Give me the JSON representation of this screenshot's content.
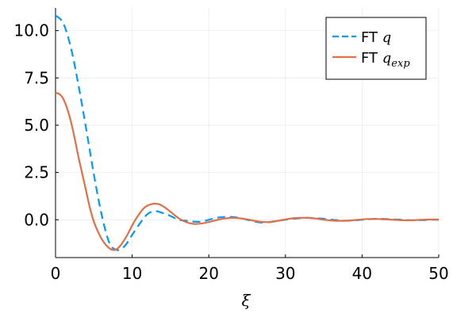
{
  "chart_data": {
    "type": "line",
    "xlabel": "ξ",
    "ylabel": "",
    "xlim": [
      0,
      50
    ],
    "ylim": [
      -2.0,
      11.2
    ],
    "x_ticks": [
      0,
      10,
      20,
      30,
      40,
      50
    ],
    "x_tick_labels": [
      "0",
      "10",
      "20",
      "30",
      "40",
      "50"
    ],
    "y_ticks": [
      0.0,
      2.5,
      5.0,
      7.5,
      10.0
    ],
    "y_tick_labels": [
      "0.0",
      "2.5",
      "5.0",
      "7.5",
      "10.0"
    ],
    "grid": true,
    "legend_position": "top-right",
    "series": [
      {
        "name": "FT q",
        "legend_prefix": "FT",
        "legend_math": "q",
        "legend_subscript": "",
        "color": "#009AFA",
        "dash": "dashed",
        "x": [
          0,
          1,
          2,
          3,
          4,
          5,
          6,
          7,
          8,
          9,
          10,
          11,
          12,
          13,
          14,
          15,
          16,
          17,
          18,
          19,
          20,
          21,
          22,
          23,
          24,
          25,
          26,
          27,
          28,
          29,
          30,
          31,
          32,
          33,
          34,
          35,
          36,
          37,
          38,
          39,
          40,
          41,
          42,
          43,
          44,
          45,
          46,
          47,
          48,
          49,
          50
        ],
        "y": [
          10.8,
          10.4,
          9.1,
          7.1,
          4.8,
          2.4,
          0.3,
          -1.2,
          -1.6,
          -1.4,
          -0.8,
          -0.2,
          0.3,
          0.45,
          0.35,
          0.2,
          0.0,
          -0.05,
          -0.1,
          -0.1,
          0.0,
          0.1,
          0.15,
          0.15,
          0.1,
          0.0,
          -0.1,
          -0.15,
          -0.12,
          -0.05,
          0.0,
          0.05,
          0.08,
          0.1,
          0.08,
          0.05,
          0.0,
          -0.03,
          -0.05,
          -0.04,
          0.0,
          0.03,
          0.05,
          0.04,
          0.02,
          0.0,
          -0.02,
          -0.03,
          -0.02,
          0.0,
          0.0
        ]
      },
      {
        "name": "FT q_exp",
        "legend_prefix": "FT",
        "legend_math": "q",
        "legend_subscript": "exp",
        "color": "#E26F46",
        "dash": "solid",
        "x": [
          0,
          0.5,
          1,
          1.5,
          2,
          2.5,
          3,
          3.5,
          4,
          4.5,
          5,
          5.5,
          6,
          6.5,
          7,
          7.5,
          8,
          8.5,
          9,
          9.5,
          10,
          10.5,
          11,
          11.5,
          12,
          12.5,
          13,
          13.5,
          14,
          14.5,
          15,
          16,
          17,
          18,
          19,
          20,
          21,
          22,
          23,
          24,
          25,
          26,
          27,
          28,
          29,
          30,
          31,
          32,
          33,
          34,
          35,
          36,
          37,
          38,
          39,
          40,
          41,
          42,
          43,
          44,
          45,
          46,
          47,
          48,
          49,
          50
        ],
        "y": [
          6.7,
          6.65,
          6.4,
          5.9,
          5.2,
          4.3,
          3.3,
          2.4,
          1.5,
          0.6,
          -0.1,
          -0.6,
          -1.0,
          -1.3,
          -1.5,
          -1.6,
          -1.55,
          -1.35,
          -1.05,
          -0.7,
          -0.3,
          0.05,
          0.35,
          0.6,
          0.75,
          0.82,
          0.85,
          0.82,
          0.72,
          0.58,
          0.42,
          0.1,
          -0.12,
          -0.22,
          -0.2,
          -0.12,
          -0.02,
          0.06,
          0.1,
          0.08,
          0.02,
          -0.06,
          -0.12,
          -0.12,
          -0.06,
          0.02,
          0.08,
          0.1,
          0.1,
          0.06,
          0.0,
          -0.04,
          -0.06,
          -0.05,
          -0.02,
          0.02,
          0.04,
          0.04,
          0.02,
          0.0,
          -0.02,
          -0.03,
          -0.02,
          0.0,
          0.01,
          0.01
        ]
      }
    ]
  }
}
